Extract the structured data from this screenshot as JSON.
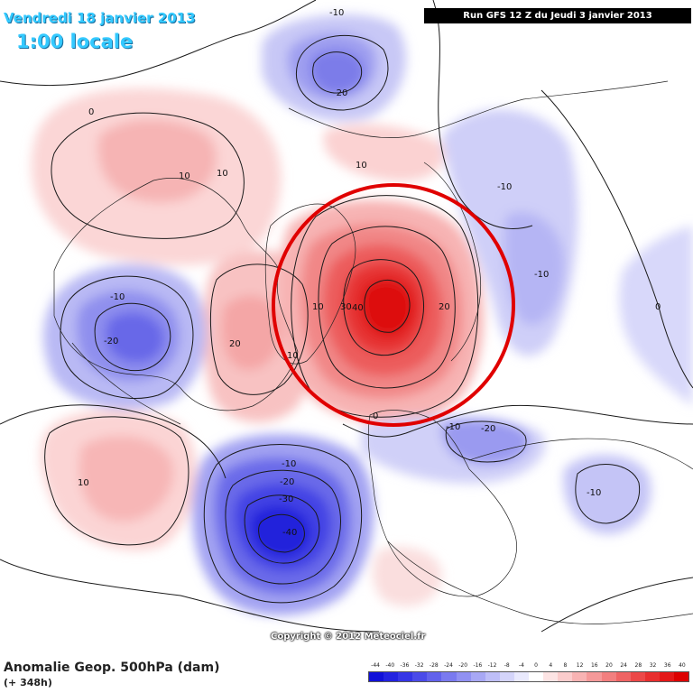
{
  "header": {
    "date": "Vendredi 18 janvier 2013",
    "local_time": "1:00 locale",
    "run": "Run GFS 12 Z du Jeudi 3 janvier 2013"
  },
  "footer": {
    "field": "Anomalie Geop. 500hPa (dam)",
    "lead": "(+ 348h)",
    "copyright": "Copyright © 2012 Meteociel.fr"
  },
  "legend": {
    "ticks": [
      "-44",
      "-40",
      "-36",
      "-32",
      "-28",
      "-24",
      "-20",
      "-16",
      "-12",
      "-8",
      "-4",
      "0",
      "4",
      "8",
      "12",
      "16",
      "20",
      "24",
      "28",
      "32",
      "36",
      "40"
    ],
    "colors": [
      "#1010d8",
      "#2222e0",
      "#3535e6",
      "#4b4be9",
      "#6262ec",
      "#7a7aef",
      "#9191f2",
      "#a8a8f5",
      "#bebef8",
      "#d4d4fa",
      "#e9e9fd",
      "#ffffff",
      "#fde4e4",
      "#fbcccc",
      "#f8b3b3",
      "#f59999",
      "#f27f7f",
      "#ef6464",
      "#ec4848",
      "#e82e2e",
      "#e41818",
      "#dd0000"
    ]
  },
  "contour_labels": {
    "pos_0": "0",
    "pos_10_pacific": "10",
    "pos_10_alaska": "10",
    "pos_10_siberia_top": "10",
    "pos_20_canada": "20",
    "pos_10_greenland_w": "10",
    "pos_10_greenland_sw": "10",
    "pos_30_polar": "30",
    "pos_40_polar": "40",
    "pos_20_polar": "20",
    "pos_0_north_atl": "0",
    "neg_10_north": "-10",
    "neg_20_north": "-20",
    "neg_10_russia": "-10",
    "neg_10_siberia": "-10",
    "neg_10_us": "-10",
    "neg_20_us": "-20",
    "pos_10_pacific_east": "10",
    "neg_10_atl_a": "-10",
    "neg_20_atl": "-20",
    "neg_30_atl": "-30",
    "neg_40_atl": "-40",
    "neg_10_europe": "-10",
    "neg_20_europe": "-20",
    "neg_10_asia": "-10",
    "zero_east": "0"
  },
  "annotation": {
    "highlight": "polar-high-circle",
    "color": "#e00000"
  }
}
